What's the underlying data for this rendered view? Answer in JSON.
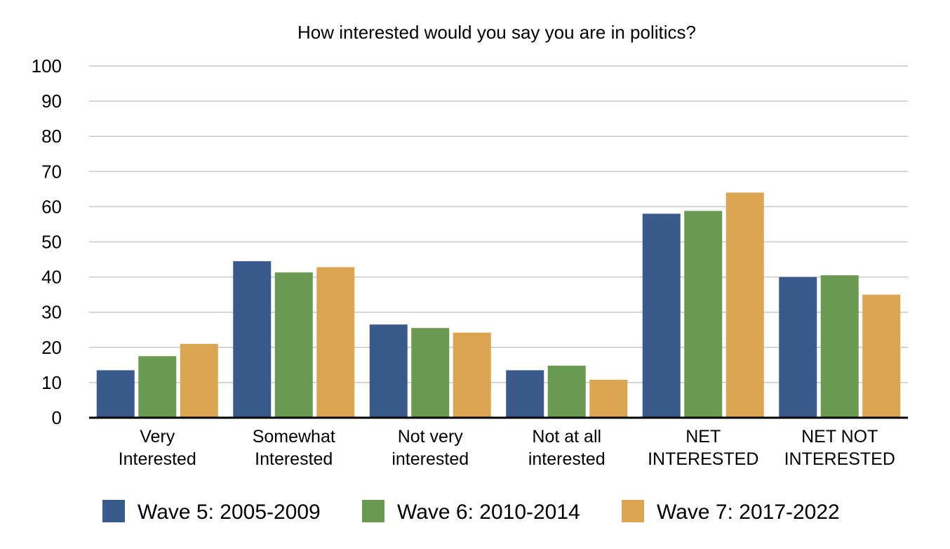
{
  "chart_data": {
    "type": "bar",
    "title": "How interested would you say you are in politics?",
    "xlabel": "",
    "ylabel": "",
    "ylim": [
      0,
      100
    ],
    "yticks": [
      "0",
      "10",
      "20",
      "30",
      "40",
      "50",
      "60",
      "70",
      "80",
      "90",
      "100"
    ],
    "grid": true,
    "legend_position": "bottom",
    "categories": [
      [
        "Very",
        "Interested"
      ],
      [
        "Somewhat",
        "Interested"
      ],
      [
        "Not very",
        "interested"
      ],
      [
        "Not at all",
        "interested"
      ],
      [
        "NET",
        "INTERESTED"
      ],
      [
        "NET NOT",
        "INTERESTED"
      ]
    ],
    "series": [
      {
        "name": "Wave 5: 2005-2009",
        "color": "#3a5a8c",
        "values": [
          13.5,
          44.5,
          26.5,
          13.5,
          58,
          40
        ]
      },
      {
        "name": "Wave 6: 2010-2014",
        "color": "#6a9a52",
        "values": [
          17.5,
          41.3,
          25.5,
          14.8,
          58.8,
          40.5
        ]
      },
      {
        "name": "Wave 7: 2017-2022",
        "color": "#dca552",
        "values": [
          21,
          42.8,
          24.2,
          10.8,
          64,
          35
        ]
      }
    ]
  }
}
